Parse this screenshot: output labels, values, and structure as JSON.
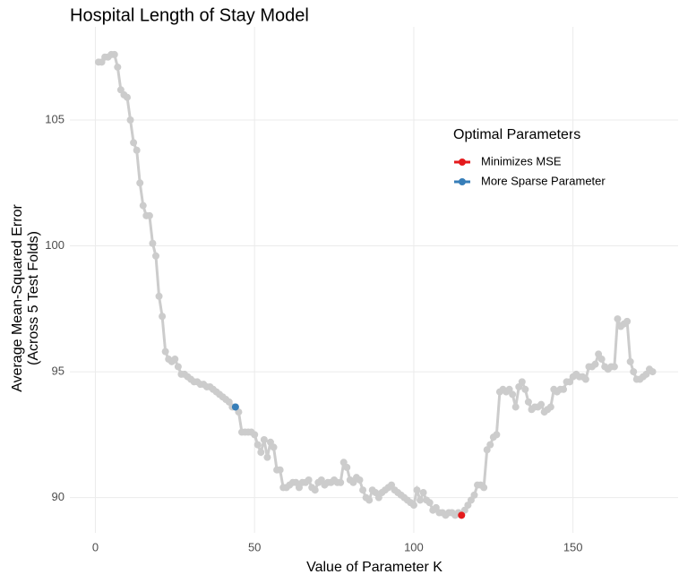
{
  "chart_data": {
    "type": "line",
    "title": "Hospital Length of Stay Model",
    "xlabel": "Value of Parameter K",
    "ylabel": [
      "Average Mean-Squared Error",
      "(Across 5 Test Folds)"
    ],
    "legend_title": "Optimal Parameters",
    "xlim": [
      -8,
      183
    ],
    "ylim": [
      88.6,
      108.7
    ],
    "xticks": [
      0,
      50,
      100,
      150
    ],
    "yticks": [
      90,
      95,
      100,
      105
    ],
    "grid": true,
    "series": [
      {
        "color": "#cccccc",
        "x": [
          1,
          2,
          3,
          4,
          5,
          6,
          7,
          8,
          9,
          10,
          11,
          12,
          13,
          14,
          15,
          16,
          17,
          18,
          19,
          20,
          21,
          22,
          23,
          24,
          25,
          26,
          27,
          28,
          29,
          30,
          31,
          32,
          33,
          34,
          35,
          36,
          37,
          38,
          39,
          40,
          41,
          42,
          43,
          44,
          45,
          46,
          47,
          48,
          49,
          50,
          51,
          52,
          53,
          54,
          55,
          56,
          57,
          58,
          59,
          60,
          61,
          62,
          63,
          64,
          65,
          66,
          67,
          68,
          69,
          70,
          71,
          72,
          73,
          74,
          75,
          76,
          77,
          78,
          79,
          80,
          81,
          82,
          83,
          84,
          85,
          86,
          87,
          88,
          89,
          90,
          91,
          92,
          93,
          94,
          95,
          96,
          97,
          98,
          99,
          100,
          101,
          102,
          103,
          104,
          105,
          106,
          107,
          108,
          109,
          110,
          111,
          112,
          113,
          114,
          115,
          116,
          117,
          118,
          119,
          120,
          121,
          122,
          123,
          124,
          125,
          126,
          127,
          128,
          129,
          130,
          131,
          132,
          133,
          134,
          135,
          136,
          137,
          138,
          139,
          140,
          141,
          142,
          143,
          144,
          145,
          146,
          147,
          148,
          149,
          150,
          151,
          152,
          153,
          154,
          155,
          156,
          157,
          158,
          159,
          160,
          161,
          162,
          163,
          164,
          165,
          166,
          167,
          168,
          169,
          170,
          171,
          172,
          173,
          174,
          175
        ],
        "values": [
          107.3,
          107.3,
          107.5,
          107.5,
          107.6,
          107.6,
          107.1,
          106.2,
          106.0,
          105.9,
          105.0,
          104.1,
          103.8,
          102.5,
          101.6,
          101.2,
          101.2,
          100.1,
          99.6,
          98.0,
          97.2,
          95.8,
          95.5,
          95.4,
          95.5,
          95.2,
          94.9,
          94.9,
          94.8,
          94.7,
          94.6,
          94.6,
          94.5,
          94.5,
          94.4,
          94.4,
          94.3,
          94.2,
          94.1,
          94.0,
          93.9,
          93.8,
          93.6,
          93.6,
          93.4,
          92.6,
          92.6,
          92.6,
          92.6,
          92.5,
          92.1,
          91.8,
          92.3,
          91.6,
          92.2,
          92.0,
          91.1,
          91.1,
          90.4,
          90.4,
          90.5,
          90.6,
          90.6,
          90.4,
          90.6,
          90.6,
          90.7,
          90.4,
          90.3,
          90.6,
          90.7,
          90.5,
          90.6,
          90.6,
          90.7,
          90.6,
          90.6,
          91.4,
          91.2,
          90.7,
          90.6,
          90.8,
          90.7,
          90.3,
          90.0,
          89.9,
          90.3,
          90.2,
          90.0,
          90.2,
          90.3,
          90.4,
          90.5,
          90.3,
          90.2,
          90.1,
          90.0,
          89.9,
          89.8,
          89.7,
          90.3,
          89.9,
          90.2,
          89.9,
          89.8,
          89.5,
          89.6,
          89.4,
          89.4,
          89.3,
          89.4,
          89.4,
          89.3,
          89.4,
          89.3,
          89.5,
          89.7,
          89.9,
          90.1,
          90.5,
          90.5,
          90.4,
          91.9,
          92.1,
          92.4,
          92.5,
          94.2,
          94.3,
          94.2,
          94.3,
          94.1,
          93.6,
          94.4,
          94.6,
          94.3,
          93.8,
          93.5,
          93.6,
          93.6,
          93.7,
          93.4,
          93.5,
          93.6,
          94.3,
          94.2,
          94.3,
          94.3,
          94.6,
          94.6,
          94.8,
          94.9,
          94.8,
          94.8,
          94.7,
          95.2,
          95.2,
          95.3,
          95.7,
          95.5,
          95.2,
          95.1,
          95.2,
          95.2,
          97.1,
          96.8,
          96.9,
          97.0,
          95.4,
          95.0,
          94.7,
          94.7,
          94.8,
          94.9,
          95.1,
          95.0
        ]
      },
      {
        "name": "Minimizes MSE",
        "color": "#e41a1c",
        "x": [
          115
        ],
        "values": [
          89.3
        ]
      },
      {
        "name": "More Sparse Parameter",
        "color": "#377eb8",
        "x": [
          44
        ],
        "values": [
          93.6
        ]
      }
    ]
  }
}
